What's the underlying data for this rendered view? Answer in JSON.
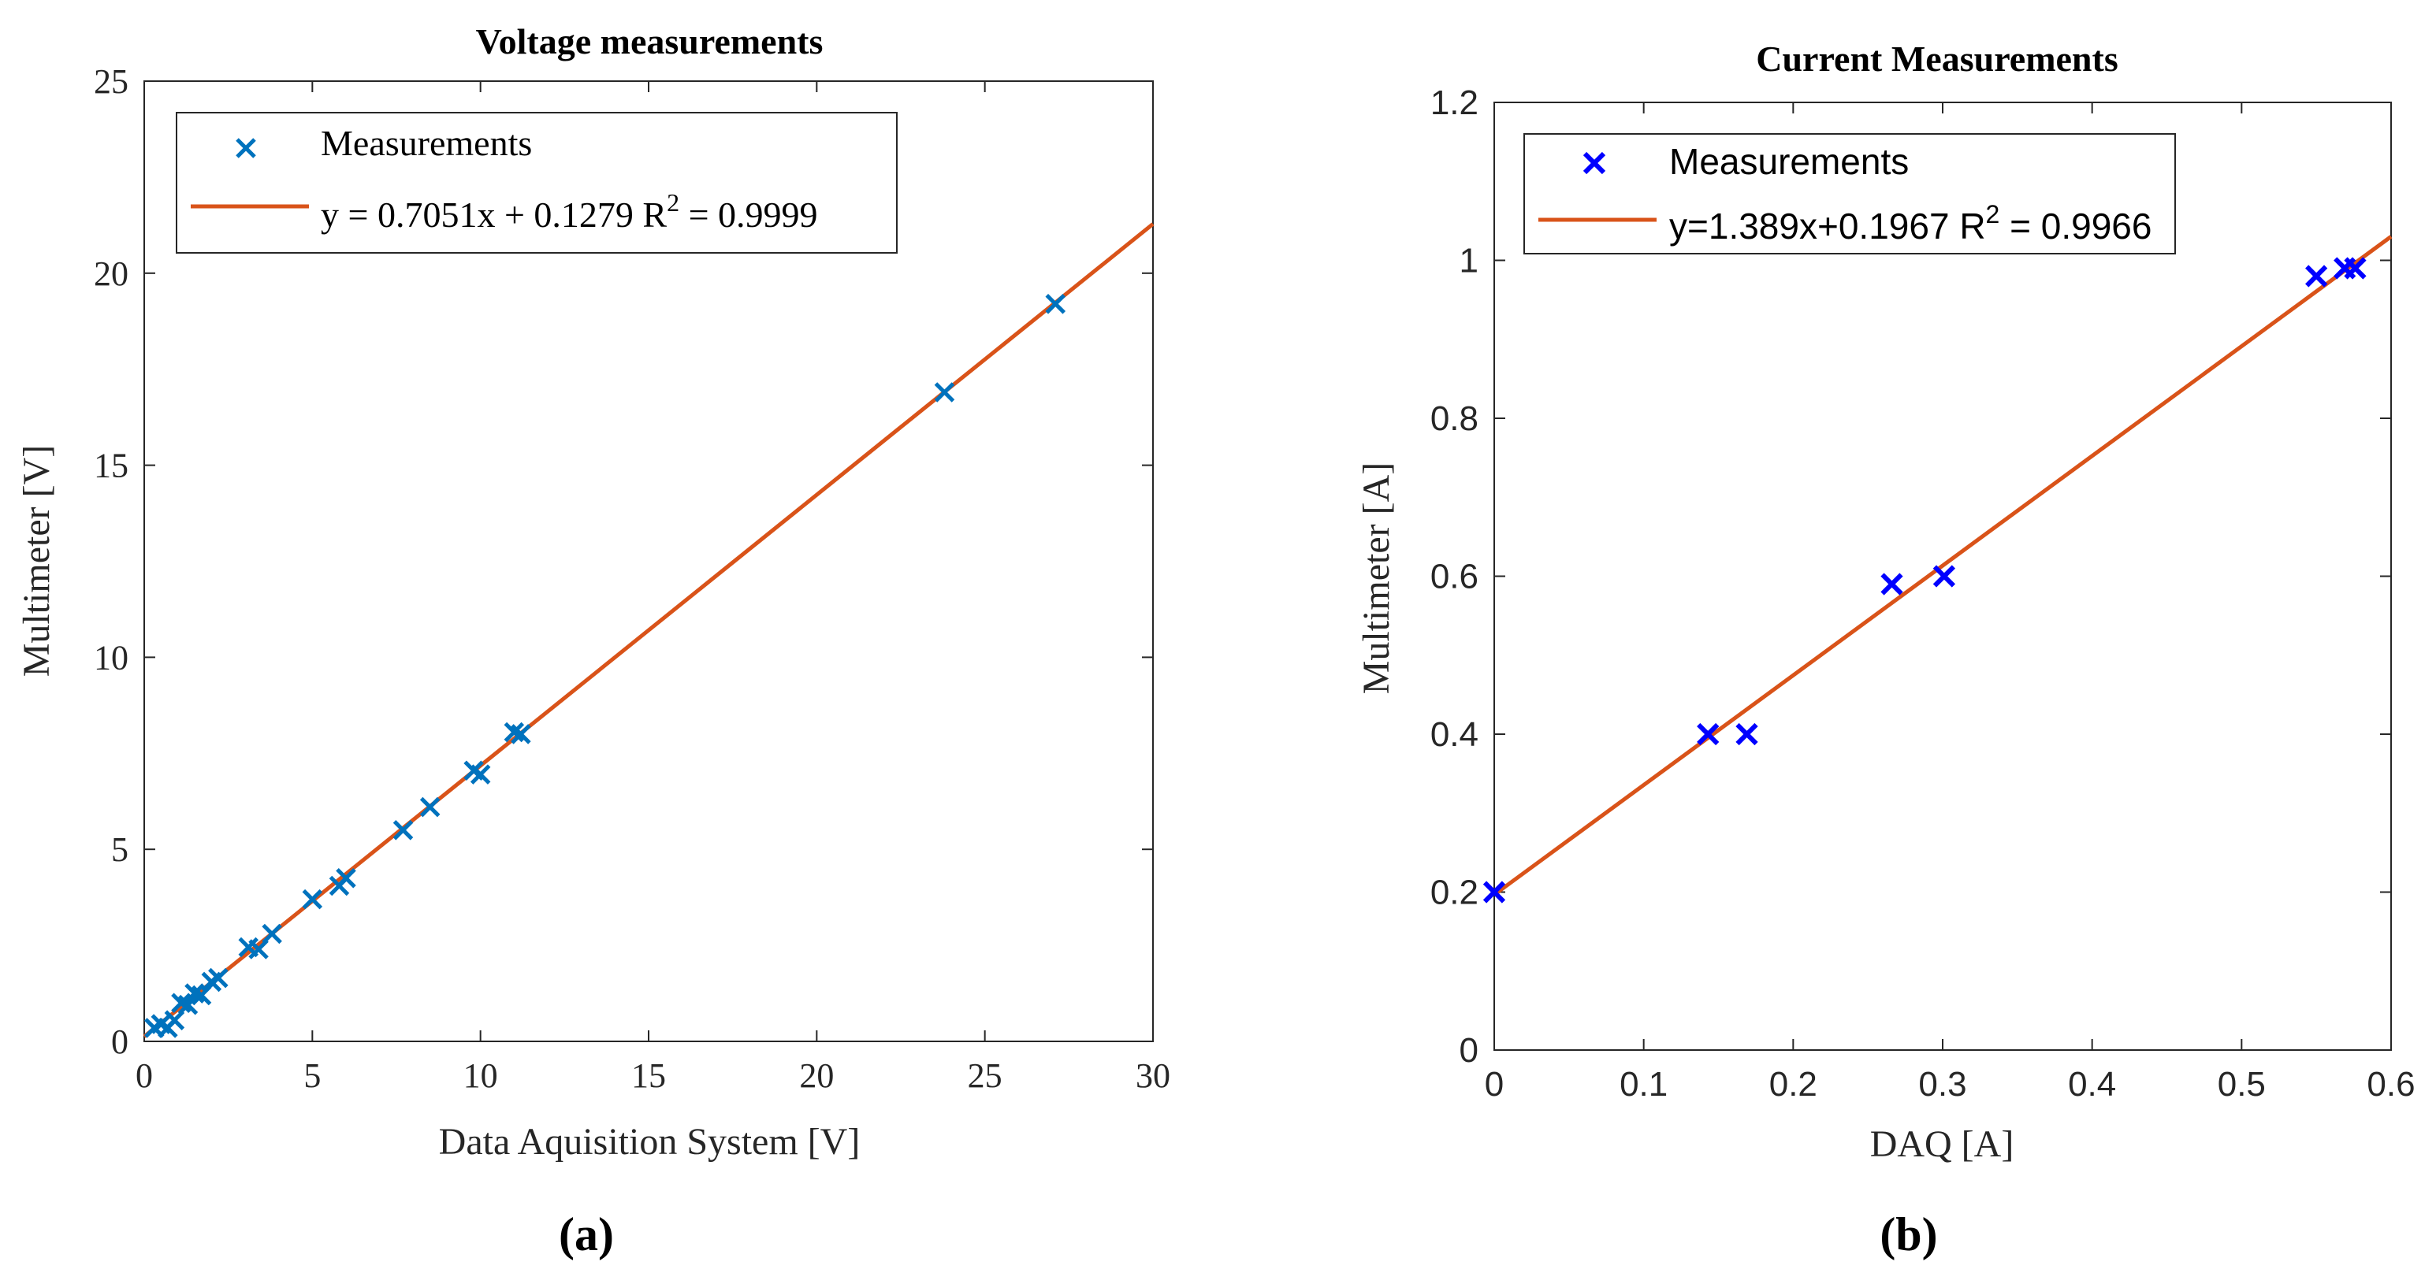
{
  "chart_data": [
    {
      "type": "scatter",
      "title": "Voltage measurements",
      "xlabel": "Data Aquisition System [V]",
      "ylabel": "Multimeter [V]",
      "xlim": [
        0,
        30
      ],
      "ylim": [
        0,
        25
      ],
      "xticks": [
        "0",
        "5",
        "10",
        "15",
        "20",
        "25",
        "30"
      ],
      "yticks": [
        "0",
        "5",
        "10",
        "15",
        "20",
        "25"
      ],
      "caption": "(a)",
      "legend": {
        "markers_label": "Measurements",
        "fit_label_main": "y = 0.7051x + 0.1279 R",
        "fit_label_sup": "2",
        "fit_label_tail": " = 0.9999",
        "placement": "top-left"
      },
      "marker_color": "#0072BD",
      "fit_color": "#D95319",
      "fit": {
        "slope": 0.7051,
        "intercept": 0.1279
      },
      "series": [
        {
          "name": "Measurements",
          "x": [
            0.3,
            0.5,
            0.7,
            0.9,
            1.1,
            1.3,
            1.5,
            1.7,
            2.0,
            2.2,
            3.1,
            3.4,
            3.8,
            5.0,
            5.8,
            6.0,
            7.7,
            8.5,
            9.8,
            10.0,
            11.0,
            11.2,
            23.8,
            27.1
          ],
          "y": [
            0.35,
            0.45,
            0.35,
            0.55,
            1.0,
            0.95,
            1.25,
            1.2,
            1.55,
            1.65,
            2.45,
            2.4,
            2.8,
            3.7,
            4.05,
            4.25,
            5.5,
            6.1,
            7.05,
            6.95,
            8.05,
            8.0,
            16.9,
            19.2
          ]
        }
      ]
    },
    {
      "type": "scatter",
      "title": "Current Measurements",
      "xlabel": "DAQ [A]",
      "ylabel": "Multimeter [A]",
      "xlim": [
        0,
        0.6
      ],
      "ylim": [
        0,
        1.2
      ],
      "xticks": [
        "0",
        "0.1",
        "0.2",
        "0.3",
        "0.4",
        "0.5",
        "0.6"
      ],
      "yticks": [
        "0",
        "0.2",
        "0.4",
        "0.6",
        "0.8",
        "1",
        "1.2"
      ],
      "caption": "(b)",
      "legend": {
        "markers_label": "Measurements",
        "fit_label_main": "y=1.389x+0.1967 R",
        "fit_label_sup": "2",
        "fit_label_tail": " = 0.9966",
        "placement": "top-left"
      },
      "marker_color": "#0000FF",
      "fit_color": "#D95319",
      "fit": {
        "slope": 1.389,
        "intercept": 0.1967
      },
      "series": [
        {
          "name": "Measurements",
          "x": [
            0.0,
            0.143,
            0.169,
            0.266,
            0.301,
            0.55,
            0.569,
            0.576
          ],
          "y": [
            0.2,
            0.4,
            0.4,
            0.59,
            0.6,
            0.98,
            0.99,
            0.99
          ]
        }
      ]
    }
  ]
}
